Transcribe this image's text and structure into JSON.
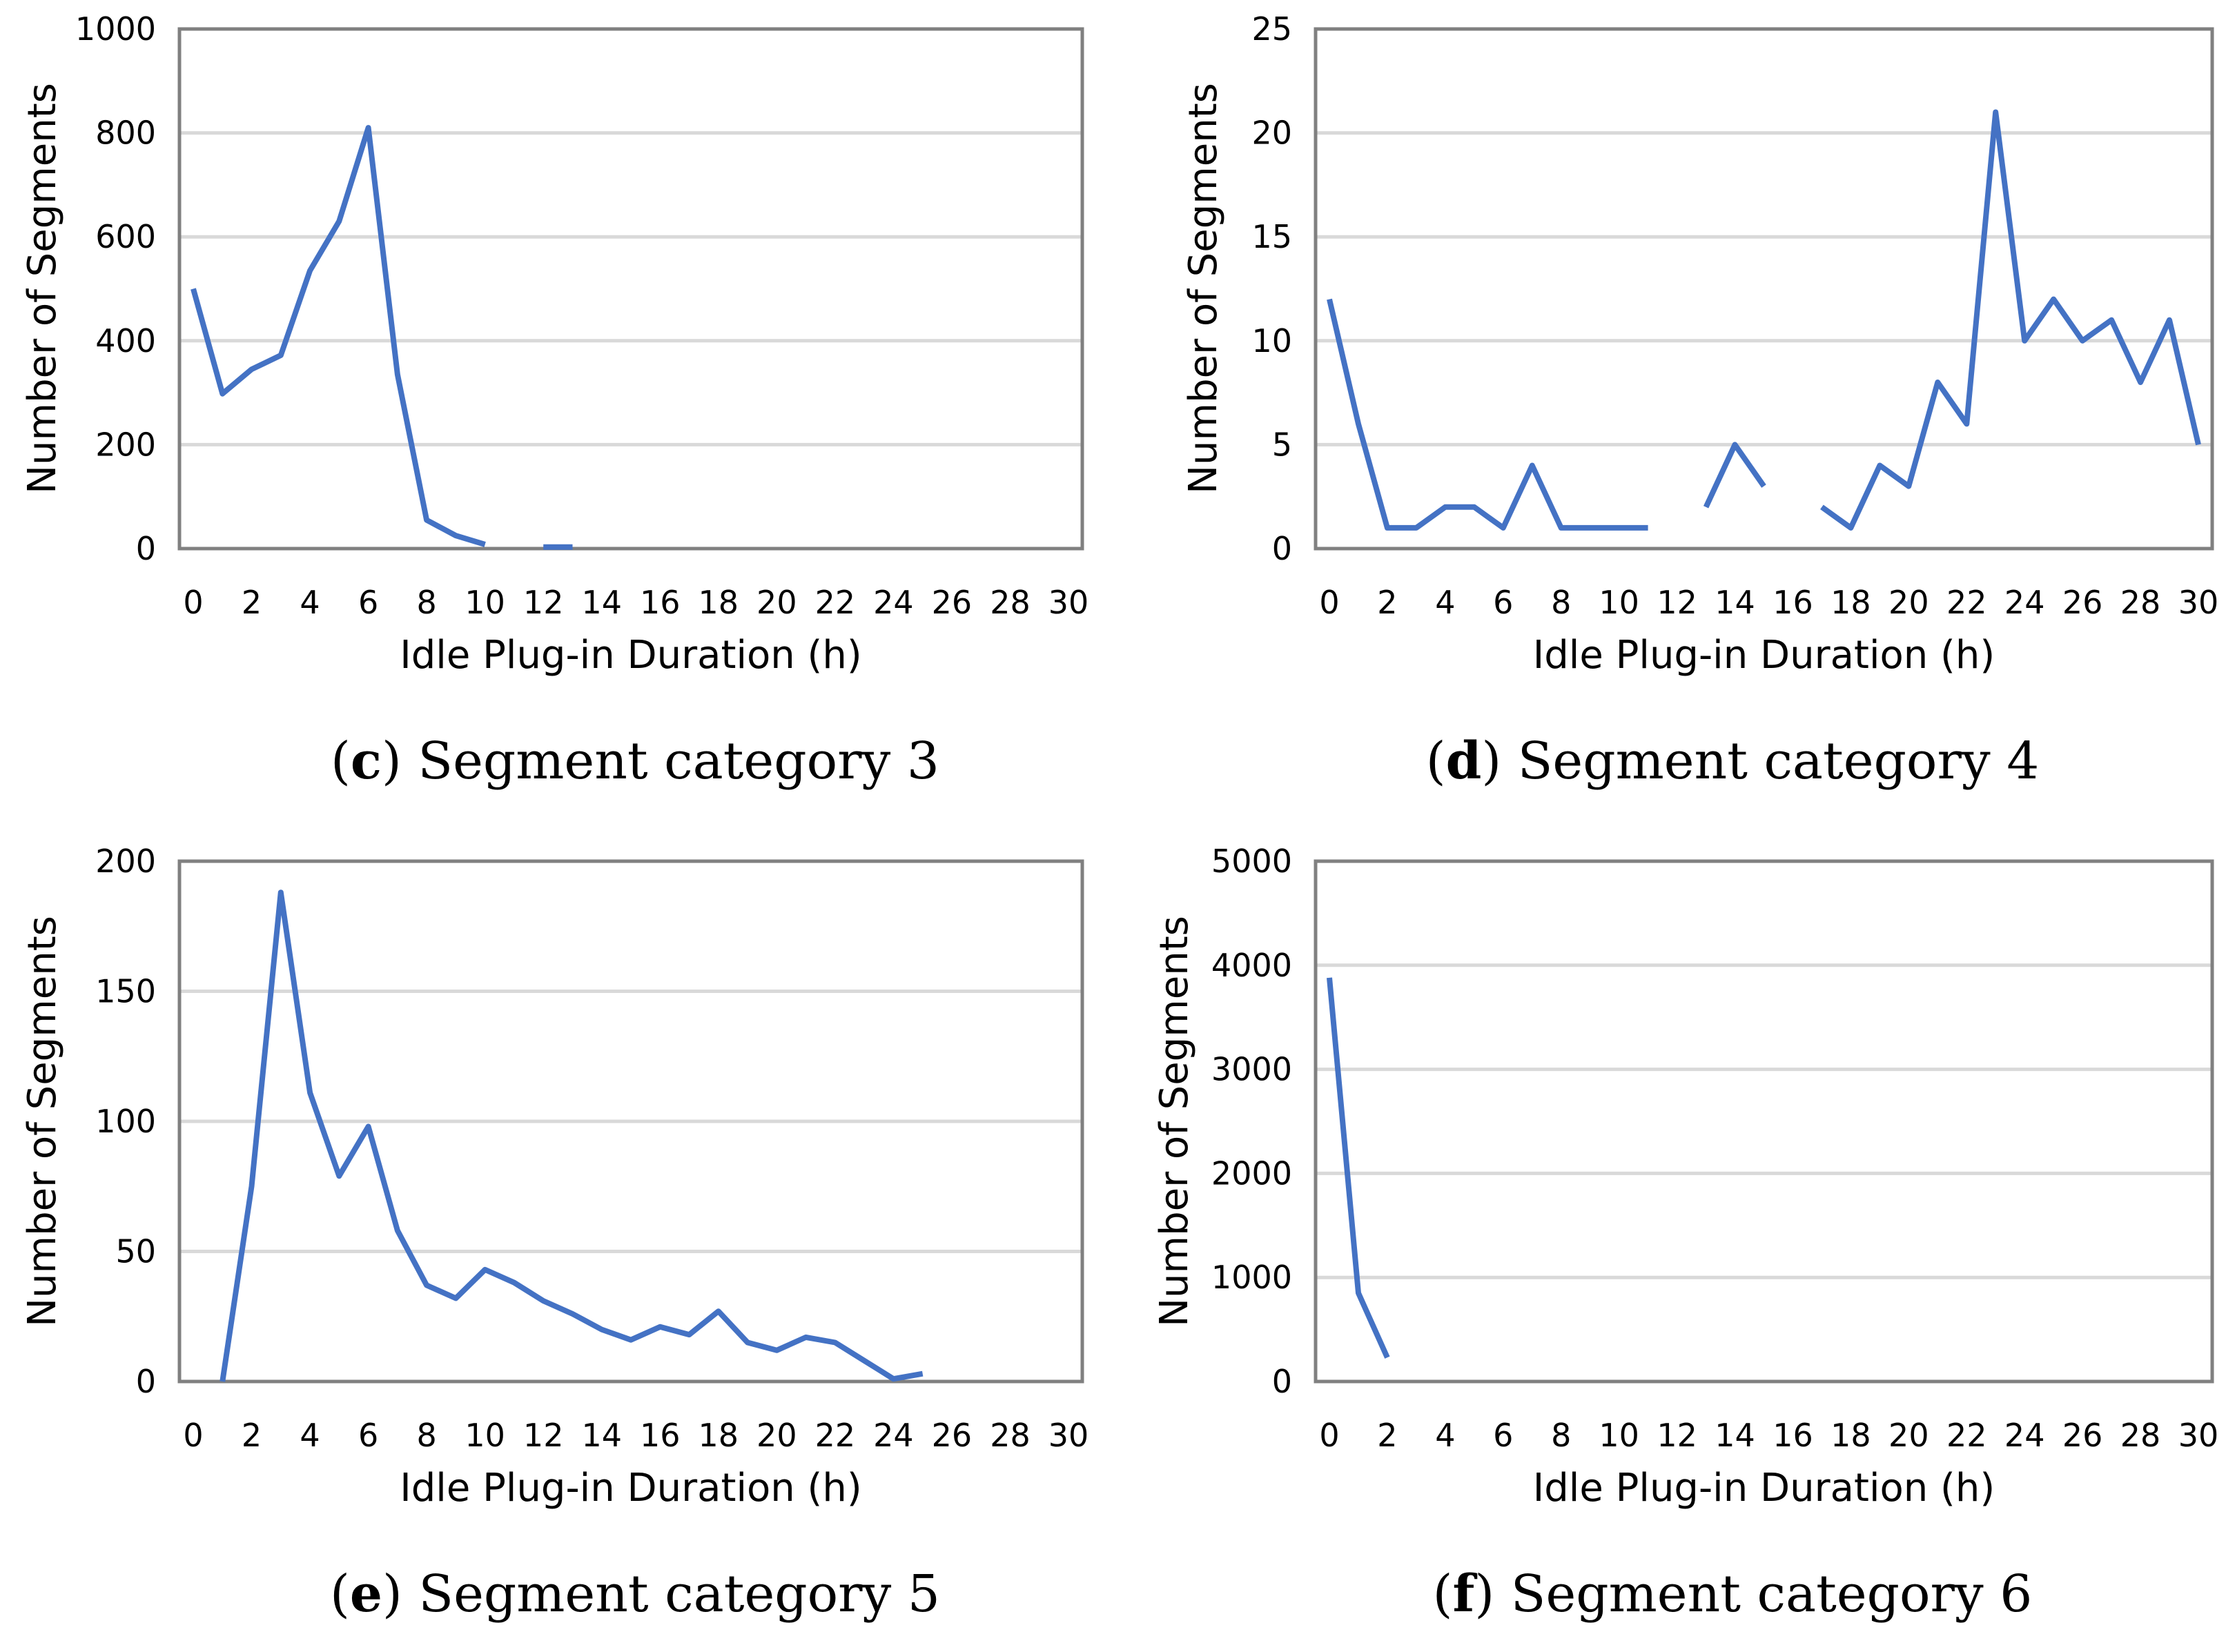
{
  "figure": {
    "line_color": "#4472C4",
    "grid_color": "#D9D9D9",
    "frame_color": "#808080"
  },
  "chart_data": [
    {
      "id": "c",
      "type": "line",
      "caption_label": "c",
      "caption_text": "Segment category 3",
      "title": "",
      "xlabel": "Idle Plug-in Duration (h)",
      "ylabel": "Number of Segments",
      "xlim": [
        0,
        30
      ],
      "ylim": [
        0,
        1000
      ],
      "xticks": [
        0,
        2,
        4,
        6,
        8,
        10,
        12,
        14,
        16,
        18,
        20,
        22,
        24,
        26,
        28,
        30
      ],
      "yticks": [
        0,
        200,
        400,
        600,
        800,
        1000
      ],
      "grid": true,
      "x": [
        0,
        1,
        2,
        3,
        4,
        5,
        6,
        7,
        8,
        9,
        10,
        11,
        12,
        13
      ],
      "y": [
        500,
        298,
        345,
        372,
        535,
        630,
        810,
        335,
        55,
        25,
        8,
        null,
        3,
        3
      ]
    },
    {
      "id": "d",
      "type": "line",
      "caption_label": "d",
      "caption_text": "Segment category 4",
      "title": "",
      "xlabel": "Idle Plug-in Duration (h)",
      "ylabel": "Number of Segments",
      "xlim": [
        0,
        30
      ],
      "ylim": [
        0,
        25
      ],
      "xticks": [
        0,
        2,
        4,
        6,
        8,
        10,
        12,
        14,
        16,
        18,
        20,
        22,
        24,
        26,
        28,
        30
      ],
      "yticks": [
        0,
        5,
        10,
        15,
        20,
        25
      ],
      "grid": true,
      "x": [
        0,
        1,
        2,
        3,
        4,
        5,
        6,
        7,
        8,
        9,
        10,
        11,
        12,
        13,
        14,
        15,
        16,
        17,
        18,
        19,
        20,
        21,
        22,
        23,
        24,
        25,
        26,
        27,
        28,
        29,
        30
      ],
      "y": [
        12,
        6,
        1,
        1,
        2,
        2,
        1,
        4,
        1,
        1,
        1,
        1,
        null,
        2,
        5,
        3,
        null,
        2,
        1,
        4,
        3,
        8,
        6,
        21,
        10,
        12,
        10,
        11,
        8,
        11,
        5
      ]
    },
    {
      "id": "e",
      "type": "line",
      "caption_label": "e",
      "caption_text": "Segment category 5",
      "title": "",
      "xlabel": "Idle Plug-in Duration (h)",
      "ylabel": "Number of Segments",
      "xlim": [
        0,
        30
      ],
      "ylim": [
        0,
        200
      ],
      "xticks": [
        0,
        2,
        4,
        6,
        8,
        10,
        12,
        14,
        16,
        18,
        20,
        22,
        24,
        26,
        28,
        30
      ],
      "yticks": [
        0,
        50,
        100,
        150,
        200
      ],
      "grid": true,
      "x": [
        1,
        2,
        3,
        4,
        5,
        6,
        7,
        8,
        9,
        10,
        11,
        12,
        13,
        14,
        15,
        16,
        17,
        18,
        19,
        20,
        21,
        22,
        23,
        24,
        25
      ],
      "y": [
        0,
        75,
        188,
        111,
        79,
        98,
        58,
        37,
        32,
        43,
        38,
        31,
        26,
        20,
        16,
        21,
        18,
        27,
        15,
        12,
        17,
        15,
        8,
        1,
        3
      ]
    },
    {
      "id": "f",
      "type": "line",
      "caption_label": "f",
      "caption_text": "Segment category 6",
      "title": "",
      "xlabel": "Idle Plug-in Duration (h)",
      "ylabel": "Number of Segments",
      "xlim": [
        0,
        30
      ],
      "ylim": [
        0,
        5000
      ],
      "xticks": [
        0,
        2,
        4,
        6,
        8,
        10,
        12,
        14,
        16,
        18,
        20,
        22,
        24,
        26,
        28,
        30
      ],
      "yticks": [
        0,
        1000,
        2000,
        3000,
        4000,
        5000
      ],
      "grid": true,
      "x": [
        0,
        1,
        2
      ],
      "y": [
        3880,
        850,
        230
      ]
    }
  ]
}
